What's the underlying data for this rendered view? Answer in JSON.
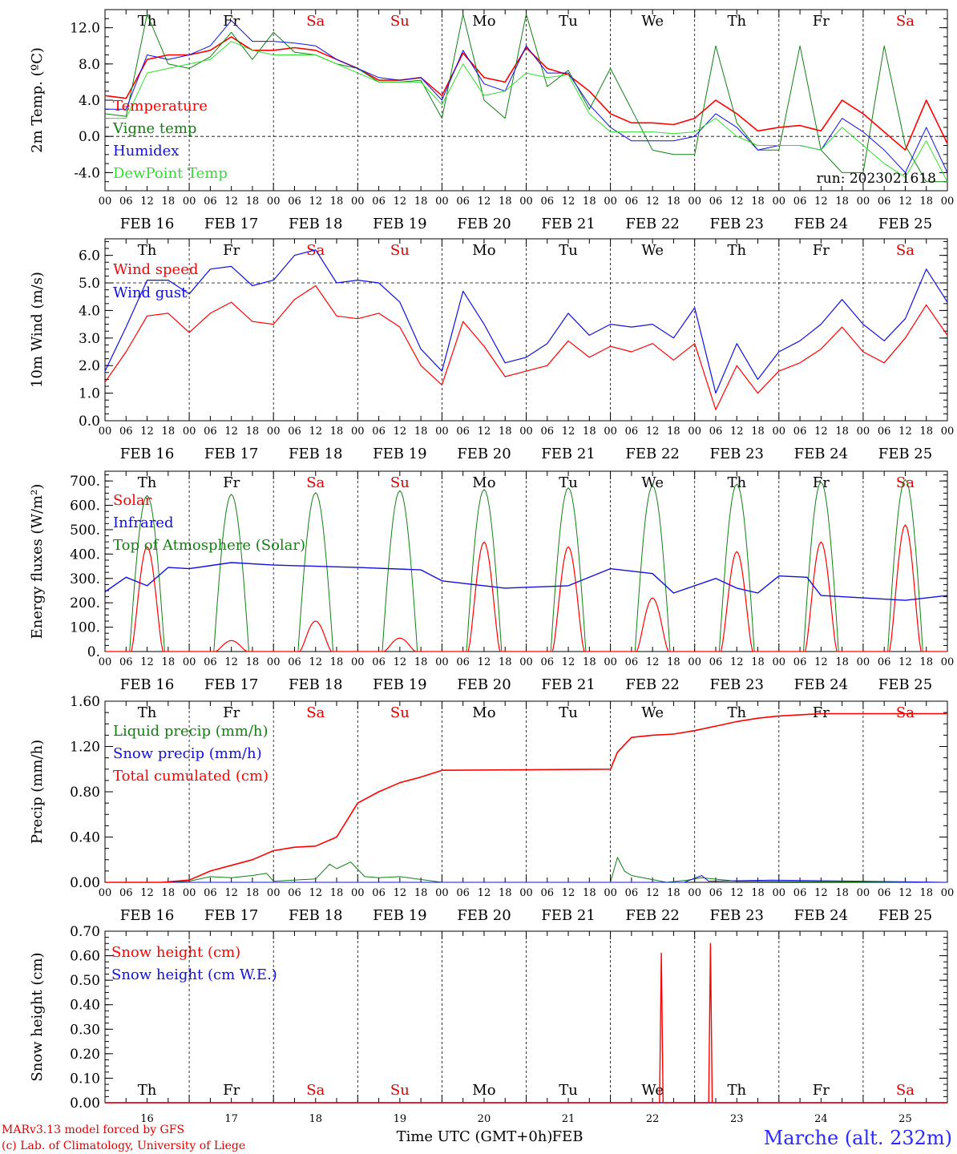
{
  "colors": {
    "red": "#ff0000",
    "dark_green": "#108010",
    "blue": "#1010e0",
    "light_green": "#30e030",
    "weekend_red": "#e00000"
  },
  "x_axis": {
    "hour_ticks": [
      "00",
      "06",
      "12",
      "18"
    ],
    "final_tick": "00",
    "dates": [
      "FEB 16",
      "FEB 17",
      "FEB 18",
      "FEB 19",
      "FEB 20",
      "FEB 21",
      "FEB 22",
      "FEB 23",
      "FEB 24",
      "FEB 25"
    ],
    "day_numbers": [
      "16",
      "17",
      "18",
      "19",
      "20",
      "21",
      "22",
      "23",
      "24",
      "25"
    ],
    "weekdays": [
      "Th",
      "Fr",
      "Sa",
      "Su",
      "Mo",
      "Tu",
      "We",
      "Th",
      "Fr",
      "Sa"
    ],
    "weekend_flags": [
      false,
      false,
      true,
      true,
      false,
      false,
      false,
      false,
      false,
      true
    ],
    "bottom_label": "Time UTC (GMT+0h)",
    "bottom_month": "FEB"
  },
  "run_label": "run: 2023021618",
  "footer": {
    "model_line": "MARv3.13 model forced by GFS",
    "credit_line": "(c) Lab. of Climatology, University of Liege",
    "location": "Marche (alt. 232m)"
  },
  "chart_data": [
    {
      "type": "line",
      "ylabel": "2m Temp. (ºC)",
      "ylim": [
        -6,
        14
      ],
      "yticks": [
        12.0,
        8.0,
        4.0,
        0.0,
        -4.0
      ],
      "ytick_labels": [
        "12.0",
        "8.0",
        "4.0",
        "0.0",
        "-4.0"
      ],
      "reference_line": 0,
      "x_hours": [
        0,
        6,
        12,
        18,
        24,
        30,
        36,
        42,
        48,
        54,
        60,
        66,
        72,
        78,
        84,
        90,
        96,
        102,
        108,
        114,
        120,
        126,
        132,
        138,
        144,
        150,
        156,
        162,
        168,
        174,
        180,
        186,
        192,
        198,
        204,
        210,
        216,
        222,
        228,
        234,
        240
      ],
      "series": [
        {
          "name": "Temperature",
          "color": "#ff0000",
          "values": [
            4.5,
            4.2,
            8.5,
            9.0,
            9.0,
            9.5,
            11.0,
            9.5,
            9.5,
            9.8,
            9.5,
            8.5,
            7.5,
            6.2,
            6.2,
            6.5,
            4.5,
            9.2,
            6.5,
            6.0,
            9.8,
            7.5,
            6.8,
            5.0,
            2.5,
            1.5,
            1.5,
            1.3,
            2.0,
            4.0,
            2.5,
            0.6,
            1.0,
            1.2,
            0.6,
            4.0,
            2.5,
            0.5,
            -1.5,
            4.0,
            -0.8
          ]
        },
        {
          "name": "Vigne temp",
          "color": "#108010",
          "values": [
            2.5,
            2.2,
            13.5,
            8.0,
            7.5,
            8.8,
            11.5,
            8.5,
            11.5,
            9.3,
            9.0,
            8.0,
            7.5,
            6.0,
            6.0,
            6.2,
            2.0,
            13.5,
            4.0,
            2.0,
            13.5,
            5.5,
            7.3,
            3.0,
            7.5,
            3.0,
            -1.5,
            -2.0,
            -2.0,
            10.0,
            1.5,
            -1.5,
            -1.5,
            10.0,
            -1.5,
            -4.0,
            -4.0,
            10.0,
            -1.0,
            -5.0,
            -5.0
          ]
        },
        {
          "name": "Humidex",
          "color": "#1010e0",
          "values": [
            3.0,
            3.0,
            9.0,
            8.5,
            9.0,
            10.0,
            12.8,
            10.5,
            10.5,
            10.3,
            10.0,
            8.5,
            7.5,
            6.5,
            6.2,
            6.5,
            4.0,
            9.5,
            5.8,
            5.0,
            10.0,
            7.0,
            7.0,
            3.5,
            1.0,
            -0.5,
            -0.5,
            -0.5,
            0.0,
            2.5,
            1.0,
            -1.5,
            -1.0,
            -1.0,
            -1.5,
            2.0,
            0.5,
            -1.5,
            -4.0,
            1.0,
            -4.0
          ]
        },
        {
          "name": "DewPoint Temp",
          "color": "#30e030",
          "values": [
            2.0,
            2.0,
            7.0,
            7.5,
            8.0,
            8.5,
            10.5,
            9.5,
            9.0,
            9.0,
            9.0,
            8.0,
            7.0,
            6.0,
            6.0,
            6.0,
            3.5,
            8.0,
            4.5,
            5.0,
            7.0,
            6.5,
            6.8,
            2.5,
            0.5,
            0.5,
            0.5,
            0.3,
            0.5,
            2.0,
            0.0,
            -1.0,
            -1.0,
            -1.0,
            -1.5,
            1.0,
            -1.0,
            -3.0,
            -4.5,
            -0.5,
            -5.0
          ]
        }
      ]
    },
    {
      "type": "line",
      "ylabel": "10m Wind (m/s)",
      "ylim": [
        0,
        6.6
      ],
      "yticks": [
        6.0,
        5.0,
        4.0,
        3.0,
        2.0,
        1.0,
        0.0
      ],
      "ytick_labels": [
        "6.0",
        "5.0",
        "4.0",
        "3.0",
        "2.0",
        "1.0",
        "0.0"
      ],
      "reference_line": 5,
      "x_hours": [
        0,
        6,
        12,
        18,
        24,
        30,
        36,
        42,
        48,
        54,
        60,
        66,
        72,
        78,
        84,
        90,
        96,
        102,
        108,
        114,
        120,
        126,
        132,
        138,
        144,
        150,
        156,
        162,
        168,
        174,
        180,
        186,
        192,
        198,
        204,
        210,
        216,
        222,
        228,
        234,
        240
      ],
      "series": [
        {
          "name": "Wind speed",
          "color": "#ff0000",
          "values": [
            1.4,
            2.5,
            3.8,
            3.9,
            3.2,
            3.9,
            4.3,
            3.6,
            3.5,
            4.4,
            4.9,
            3.8,
            3.7,
            3.9,
            3.4,
            2.0,
            1.3,
            3.6,
            2.7,
            1.6,
            1.8,
            2.0,
            2.9,
            2.3,
            2.7,
            2.5,
            2.8,
            2.2,
            2.8,
            0.4,
            2.0,
            1.0,
            1.8,
            2.1,
            2.6,
            3.4,
            2.5,
            2.1,
            3.0,
            4.2,
            3.1
          ]
        },
        {
          "name": "Wind gust",
          "color": "#1010e0",
          "values": [
            1.8,
            3.4,
            5.1,
            5.1,
            4.6,
            5.5,
            5.6,
            4.9,
            5.1,
            6.0,
            6.2,
            5.0,
            5.1,
            5.0,
            4.3,
            2.6,
            1.8,
            4.7,
            3.5,
            2.1,
            2.3,
            2.8,
            3.9,
            3.1,
            3.5,
            3.4,
            3.5,
            3.0,
            4.1,
            1.0,
            2.8,
            1.5,
            2.5,
            2.9,
            3.5,
            4.4,
            3.5,
            2.9,
            3.7,
            5.5,
            4.3
          ]
        }
      ]
    },
    {
      "type": "line",
      "ylabel": "Energy fluxes (W/m²)",
      "ylim": [
        0,
        740
      ],
      "yticks": [
        700,
        600,
        500,
        400,
        300,
        200,
        100,
        0
      ],
      "ytick_labels": [
        "700.",
        "600.",
        "500.",
        "400.",
        "300.",
        "200.",
        "100.",
        "0."
      ],
      "daily_peaks": {
        "top_of_atmosphere_solar": [
          640,
          645,
          652,
          660,
          665,
          672,
          680,
          687,
          695,
          705
        ],
        "solar": [
          430,
          45,
          125,
          55,
          450,
          430,
          220,
          410,
          450,
          520
        ]
      },
      "series": [
        {
          "name": "Solar",
          "color": "#ff0000"
        },
        {
          "name": "Infrared",
          "color": "#1010e0",
          "x_hours": [
            0,
            6,
            12,
            18,
            24,
            36,
            48,
            60,
            72,
            90,
            96,
            108,
            114,
            132,
            144,
            156,
            162,
            174,
            180,
            186,
            192,
            200,
            204,
            216,
            228,
            240
          ],
          "values": [
            245,
            305,
            270,
            345,
            340,
            365,
            355,
            350,
            345,
            335,
            290,
            270,
            260,
            270,
            340,
            320,
            240,
            300,
            260,
            240,
            310,
            305,
            230,
            220,
            210,
            230
          ]
        },
        {
          "name": "Top of Atmosphere (Solar)",
          "color": "#108010"
        }
      ]
    },
    {
      "type": "line",
      "ylabel": "Precip (mm/h)",
      "ylim": [
        0,
        1.6
      ],
      "yticks": [
        1.6,
        1.2,
        0.8,
        0.4,
        0.0
      ],
      "ytick_labels": [
        "1.60",
        "1.20",
        "0.80",
        "0.40",
        "0.00"
      ],
      "series": [
        {
          "name": "Liquid precip (mm/h)",
          "color": "#108010",
          "x_hours": [
            0,
            16,
            24,
            30,
            36,
            42,
            46,
            48,
            60,
            64,
            66,
            70,
            74,
            78,
            84,
            96,
            144,
            146,
            148,
            150,
            160,
            166,
            170,
            180,
            240
          ],
          "values": [
            0,
            0,
            0.01,
            0.05,
            0.04,
            0.06,
            0.08,
            0.01,
            0.03,
            0.16,
            0.12,
            0.18,
            0.05,
            0.04,
            0.05,
            0.0,
            0.0,
            0.22,
            0.1,
            0.06,
            0.0,
            0.02,
            0.04,
            0.01,
            0.0
          ]
        },
        {
          "name": "Snow precip (mm/h)",
          "color": "#1010e0",
          "x_hours": [
            0,
            165,
            170,
            172,
            190,
            240
          ],
          "values": [
            0,
            0,
            0.06,
            0.01,
            0.02,
            0
          ]
        },
        {
          "name": "Total cumulated (cm)",
          "color": "#ff0000",
          "x_hours": [
            0,
            16,
            24,
            30,
            36,
            42,
            48,
            54,
            60,
            66,
            72,
            78,
            84,
            90,
            96,
            144,
            146,
            150,
            156,
            162,
            168,
            174,
            180,
            186,
            192,
            204,
            216,
            240
          ],
          "values": [
            0.0,
            0.0,
            0.02,
            0.1,
            0.15,
            0.2,
            0.28,
            0.31,
            0.32,
            0.4,
            0.7,
            0.8,
            0.88,
            0.93,
            0.99,
            1.0,
            1.15,
            1.28,
            1.3,
            1.31,
            1.34,
            1.38,
            1.42,
            1.45,
            1.47,
            1.49,
            1.49,
            1.49
          ]
        }
      ]
    },
    {
      "type": "line",
      "ylabel": "Snow height (cm)",
      "ylim": [
        0,
        0.7
      ],
      "yticks": [
        0.7,
        0.6,
        0.5,
        0.4,
        0.3,
        0.2,
        0.1,
        0.0
      ],
      "ytick_labels": [
        "0.70",
        "0.60",
        "0.50",
        "0.40",
        "0.30",
        "0.20",
        "0.10",
        "0.00"
      ],
      "series": [
        {
          "name": "Snow height (cm)",
          "color": "#ff0000",
          "x_hours": [
            0,
            158,
            158.5,
            159,
            172,
            172.5,
            173,
            240
          ],
          "values": [
            0,
            0,
            0.61,
            0,
            0,
            0.65,
            0,
            0
          ]
        },
        {
          "name": "Snow height (cm W.E.)",
          "color": "#1010e0",
          "x_hours": [
            0,
            240
          ],
          "values": [
            0,
            0
          ]
        }
      ]
    }
  ]
}
